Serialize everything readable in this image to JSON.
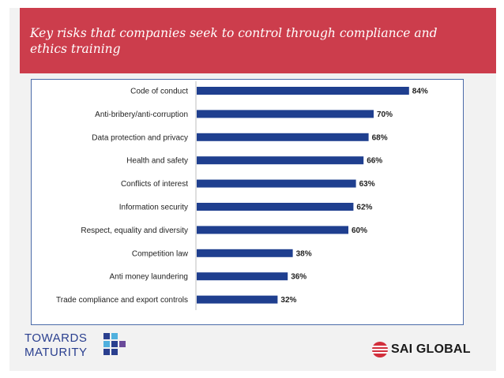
{
  "header": {
    "title": "Key risks that companies seek to control through compliance and ethics training"
  },
  "chart_data": {
    "type": "bar",
    "orientation": "horizontal",
    "categories": [
      "Code of conduct",
      "Anti-bribery/anti-corruption",
      "Data protection and privacy",
      "Health and safety",
      "Conflicts of interest",
      "Information security",
      "Respect, equality and diversity",
      "Competition law",
      "Anti money laundering",
      "Trade compliance and export controls"
    ],
    "values": [
      84,
      70,
      68,
      66,
      63,
      62,
      60,
      38,
      36,
      32
    ],
    "labels": [
      "84%",
      "70%",
      "68%",
      "66%",
      "63%",
      "62%",
      "60%",
      "38%",
      "36%",
      "32%"
    ],
    "xlim": [
      0,
      100
    ],
    "title": "",
    "xlabel": "",
    "ylabel": "",
    "grid": false,
    "bar_color": "#1f3f8f"
  },
  "logos": {
    "left_line1": "TOWARDS",
    "left_line2": "MATURITY",
    "right": "SAI GLOBAL"
  },
  "colors": {
    "header_bg": "#cc3d4c",
    "brand_blue": "#2a3f8f",
    "sai_red": "#d22f3c"
  }
}
